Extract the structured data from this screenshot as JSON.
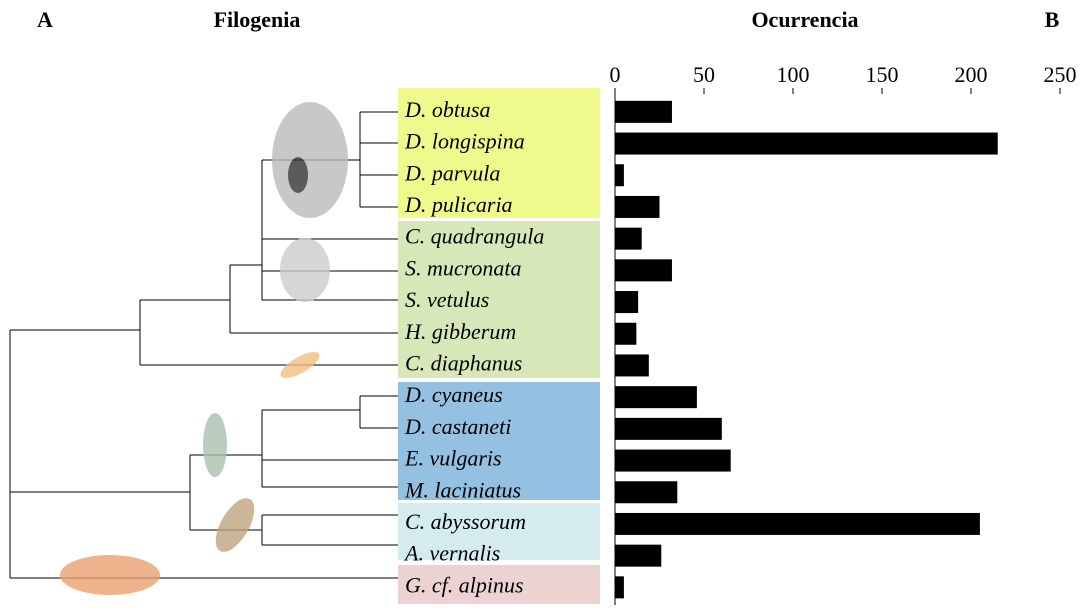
{
  "panels": {
    "left": "A",
    "right": "B"
  },
  "phylogeny": {
    "title": "Filogenia"
  },
  "chart_data": {
    "type": "bar",
    "orientation": "horizontal",
    "title": "Ocurrencia",
    "categories": [
      "D. obtusa",
      "D. longispina",
      "D. parvula",
      "D. pulicaria",
      "C. quadrangula",
      "S. mucronata",
      "S. vetulus",
      "H. gibberum",
      "C. diaphanus",
      "D. cyaneus",
      "D. castaneti",
      "E. vulgaris",
      "M. laciniatus",
      "C. abyssorum",
      "A. vernalis",
      "G. cf. alpinus"
    ],
    "values": [
      32,
      215,
      5,
      25,
      15,
      32,
      13,
      12,
      19,
      46,
      60,
      65,
      35,
      205,
      26,
      5
    ],
    "color": "#000000",
    "xlim": [
      0,
      250
    ],
    "xticks": [
      0,
      50,
      100,
      150,
      200,
      250
    ]
  }
}
